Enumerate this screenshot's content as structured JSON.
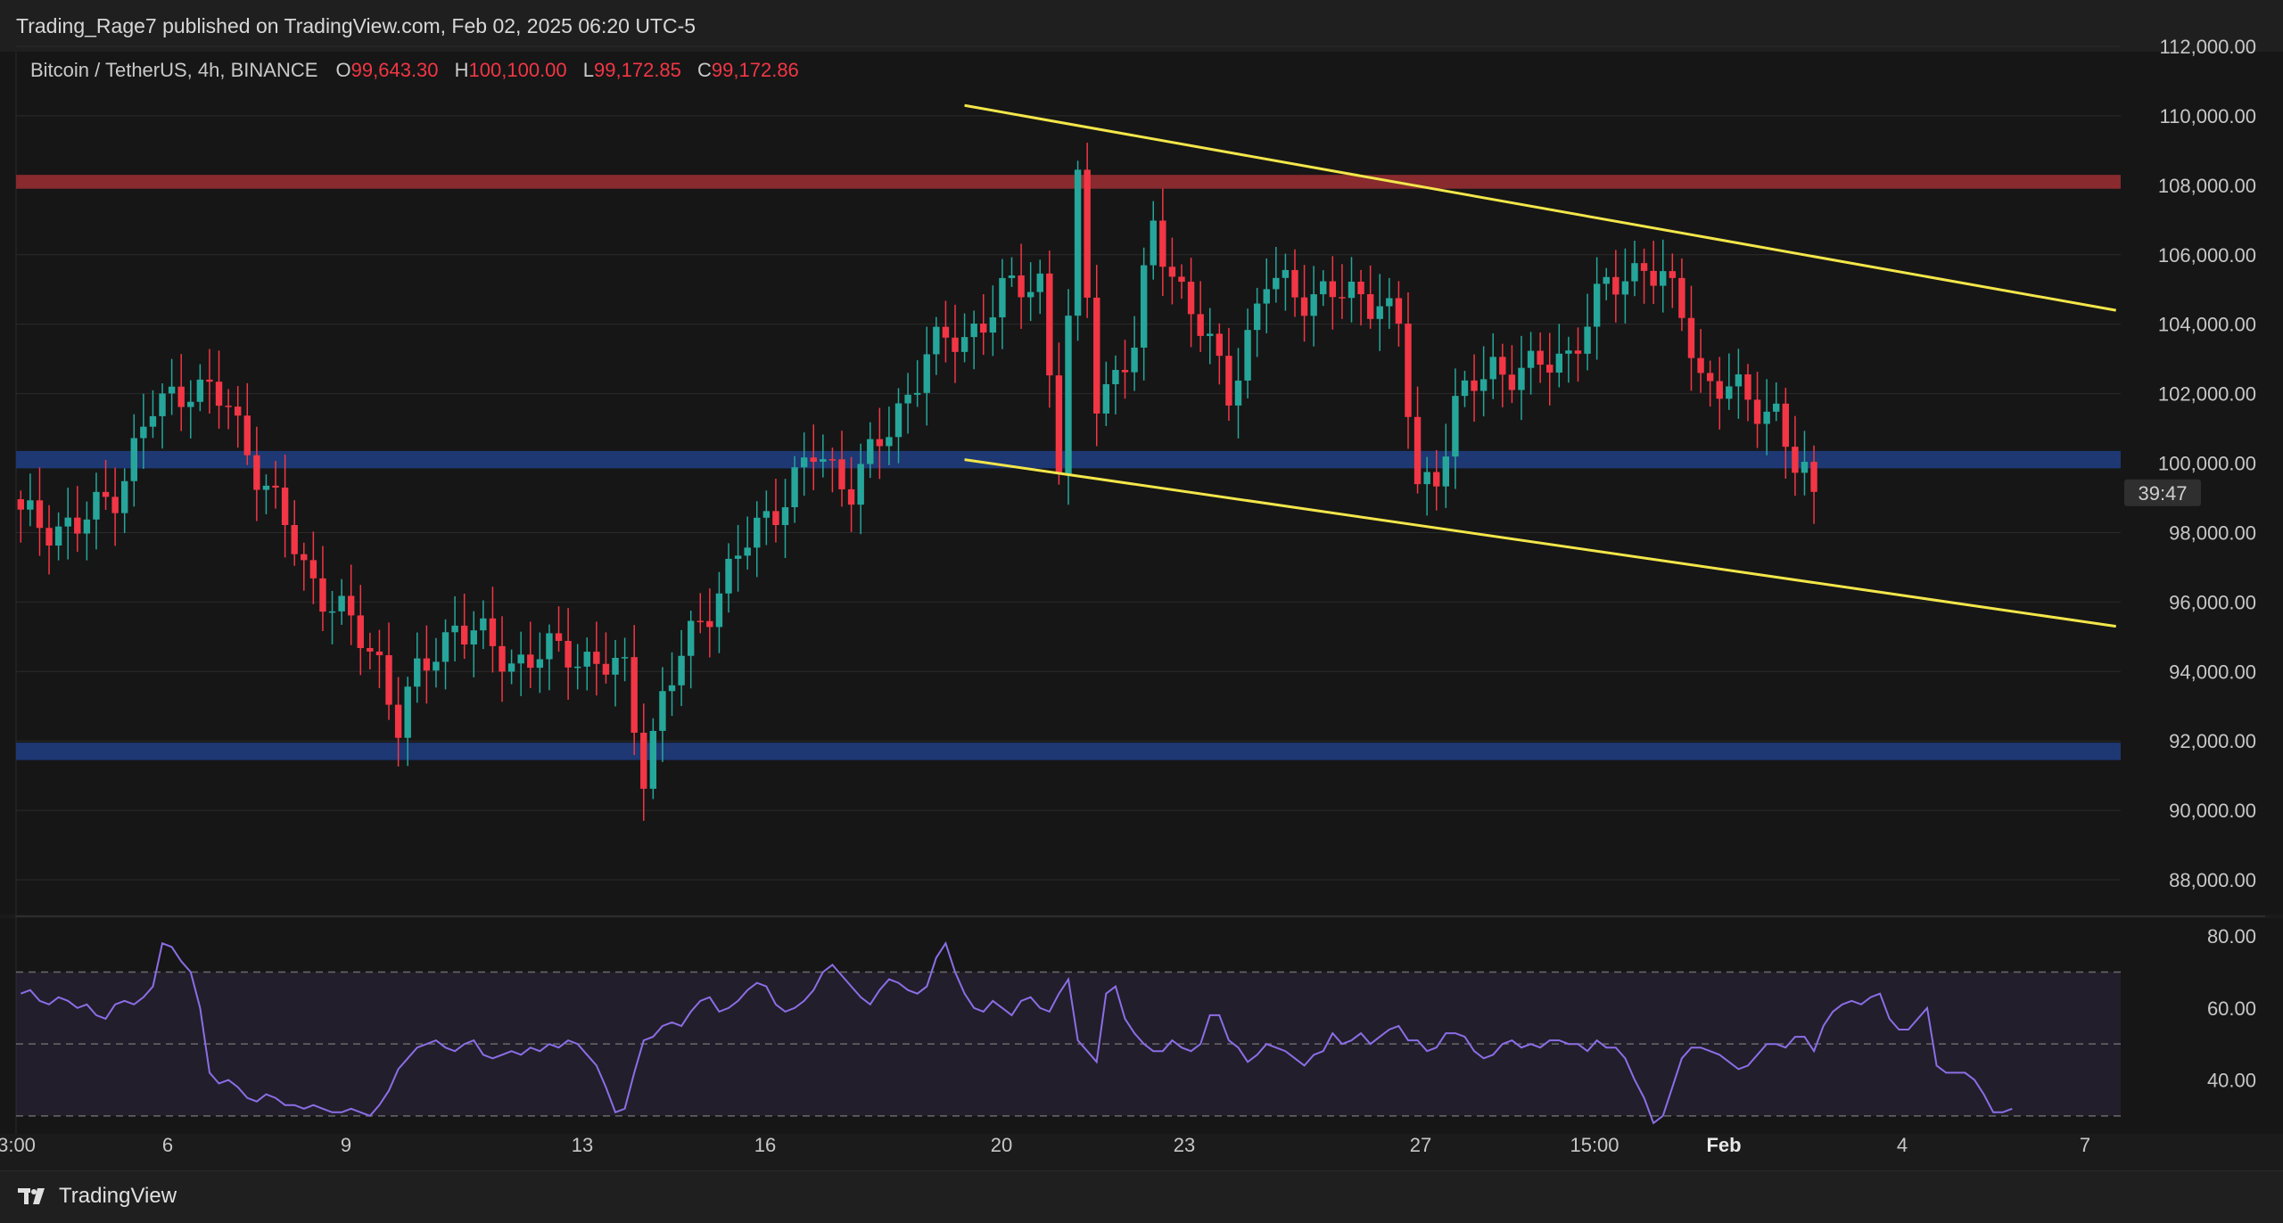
{
  "header": {
    "published": "Trading_Rage7 published on TradingView.com, Feb 02, 2025 06:20 UTC-5"
  },
  "legend": {
    "symbol": "Bitcoin / TetherUS, 4h, BINANCE",
    "open_label": "O",
    "open": "99,643.30",
    "high_label": "H",
    "high": "100,100.00",
    "low_label": "L",
    "low": "99,172.85",
    "close_label": "C",
    "close": "99,172.86"
  },
  "countdown": "39:47",
  "footer": {
    "brand": "TradingView",
    "logo_icon": "tradingview-logo-icon"
  },
  "colors": {
    "up": "#26a69a",
    "down": "#f23645",
    "trendline": "#f3e64a",
    "resistance_zone": "#8e2b2f",
    "support_zone": "#1d3a78",
    "rsi_line": "#8b6ee6",
    "background": "#161616",
    "grid": "#2b2b2b"
  },
  "chart_data": [
    {
      "type": "candlestick",
      "title": "Bitcoin / TetherUS, 4h, BINANCE",
      "ylim": [
        87000,
        112000
      ],
      "y_ticks": [
        88000,
        90000,
        92000,
        94000,
        96000,
        98000,
        100000,
        102000,
        104000,
        106000,
        108000,
        110000,
        112000
      ],
      "y_tick_labels": [
        "88,000.00",
        "90,000.00",
        "92,000.00",
        "94,000.00",
        "96,000.00",
        "98,000.00",
        "100,000.00",
        "102,000.00",
        "104,000.00",
        "106,000.00",
        "108,000.00",
        "110,000.00",
        "112,000.00"
      ],
      "x_tick_labels": [
        "3:00",
        "6",
        "9",
        "13",
        "16",
        "20",
        "23",
        "27",
        "15:00",
        "Feb",
        "4",
        "7"
      ],
      "close_path": [
        [
          0,
          98400
        ],
        [
          6,
          98100
        ],
        [
          10,
          99200
        ],
        [
          14,
          101500
        ],
        [
          18,
          102300
        ],
        [
          22,
          101600
        ],
        [
          26,
          99300
        ],
        [
          30,
          97000
        ],
        [
          34,
          95600
        ],
        [
          38,
          94300
        ],
        [
          40,
          92500
        ],
        [
          42,
          93800
        ],
        [
          46,
          95400
        ],
        [
          52,
          94300
        ],
        [
          58,
          94600
        ],
        [
          64,
          93900
        ],
        [
          66,
          91200
        ],
        [
          68,
          93200
        ],
        [
          72,
          95500
        ],
        [
          76,
          97300
        ],
        [
          80,
          98800
        ],
        [
          84,
          100200
        ],
        [
          88,
          99400
        ],
        [
          92,
          100900
        ],
        [
          96,
          103200
        ],
        [
          100,
          103600
        ],
        [
          104,
          104800
        ],
        [
          108,
          105300
        ],
        [
          110,
          100100
        ],
        [
          112,
          107800
        ],
        [
          114,
          101900
        ],
        [
          118,
          103300
        ],
        [
          120,
          106800
        ],
        [
          124,
          104400
        ],
        [
          128,
          102100
        ],
        [
          132,
          105200
        ],
        [
          136,
          104900
        ],
        [
          140,
          104800
        ],
        [
          144,
          104800
        ],
        [
          146,
          103800
        ],
        [
          148,
          99200
        ],
        [
          150,
          99800
        ],
        [
          152,
          101600
        ],
        [
          156,
          102800
        ],
        [
          160,
          102600
        ],
        [
          164,
          103200
        ],
        [
          168,
          105000
        ],
        [
          172,
          105800
        ],
        [
          176,
          104400
        ],
        [
          178,
          102500
        ],
        [
          182,
          101900
        ],
        [
          186,
          101500
        ],
        [
          188,
          99800
        ],
        [
          190,
          99172
        ]
      ],
      "zones": [
        {
          "name": "resistance",
          "from": 107900,
          "to": 108300
        },
        {
          "name": "support",
          "from": 99850,
          "to": 100350
        },
        {
          "name": "support",
          "from": 91450,
          "to": 91950
        }
      ],
      "trendlines": [
        {
          "name": "upper",
          "points": [
            [
              100,
              110300
            ],
            [
              222,
              104400
            ]
          ]
        },
        {
          "name": "lower",
          "points": [
            [
              100,
              100100
            ],
            [
              222,
              95300
            ]
          ]
        }
      ]
    },
    {
      "type": "line",
      "title": "RSI",
      "ylim": [
        25,
        85
      ],
      "y_ticks": [
        40,
        60,
        80
      ],
      "y_tick_labels": [
        "40.00",
        "60.00",
        "80.00"
      ],
      "bands": [
        30,
        50,
        70
      ],
      "values": [
        64,
        65,
        62,
        61,
        63,
        62,
        60,
        61,
        58,
        57,
        61,
        62,
        61,
        63,
        66,
        78,
        77,
        73,
        70,
        60,
        42,
        39,
        40,
        38,
        35,
        34,
        36,
        35,
        33,
        33,
        32,
        33,
        32,
        31,
        31,
        32,
        31,
        30,
        33,
        37,
        43,
        46,
        49,
        50,
        51,
        49,
        48,
        50,
        51,
        47,
        46,
        47,
        48,
        47,
        49,
        48,
        50,
        49,
        51,
        50,
        47,
        44,
        38,
        31,
        32,
        42,
        51,
        52,
        55,
        56,
        55,
        59,
        62,
        63,
        59,
        60,
        62,
        65,
        67,
        66,
        61,
        59,
        60,
        62,
        65,
        70,
        72,
        69,
        66,
        63,
        61,
        65,
        68,
        67,
        65,
        64,
        66,
        74,
        78,
        70,
        64,
        60,
        59,
        62,
        60,
        58,
        62,
        63,
        60,
        59,
        64,
        68,
        51,
        48,
        45,
        64,
        66,
        57,
        53,
        50,
        48,
        48,
        51,
        49,
        48,
        50,
        58,
        58,
        51,
        49,
        45,
        47,
        50,
        49,
        48,
        46,
        44,
        47,
        48,
        53,
        50,
        51,
        53,
        50,
        52,
        54,
        55,
        51,
        51,
        48,
        49,
        53,
        53,
        52,
        48,
        46,
        47,
        50,
        51,
        49,
        50,
        49,
        51,
        51,
        50,
        50,
        48,
        51,
        49,
        49,
        46,
        40,
        35,
        28,
        30,
        38,
        46,
        49,
        49,
        48,
        47,
        45,
        43,
        44,
        47,
        50,
        50,
        49,
        52,
        52,
        48,
        55,
        59,
        61,
        62,
        61,
        63,
        64,
        57,
        54,
        54,
        57,
        60,
        44,
        42,
        42,
        42,
        40,
        36,
        31,
        31,
        32
      ]
    }
  ]
}
